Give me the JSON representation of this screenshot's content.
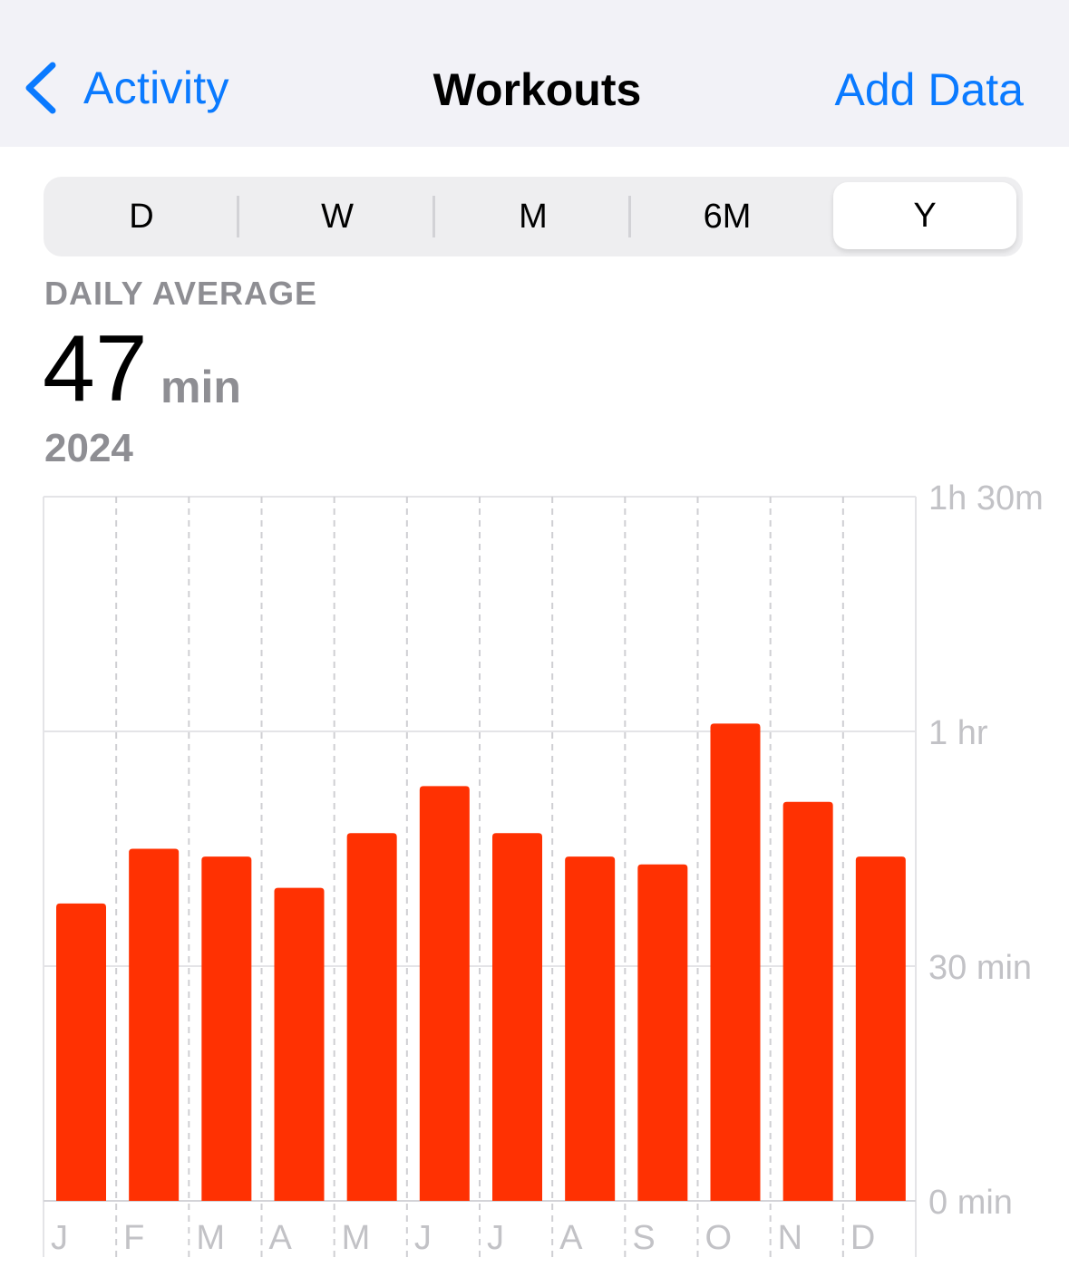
{
  "navbar": {
    "back_label": "Activity",
    "title": "Workouts",
    "action_label": "Add Data"
  },
  "segments": [
    "D",
    "W",
    "M",
    "6M",
    "Y"
  ],
  "selected_segment": "Y",
  "summary": {
    "label": "DAILY AVERAGE",
    "value": "47",
    "unit": "min",
    "period": "2024"
  },
  "colors": {
    "accent": "#0a7aff",
    "bar": "#ff3102",
    "secondary_text": "#8e8e93"
  },
  "chart_data": {
    "type": "bar",
    "categories": [
      "J",
      "F",
      "M",
      "A",
      "M",
      "J",
      "J",
      "A",
      "S",
      "O",
      "N",
      "D"
    ],
    "values": [
      38,
      45,
      44,
      40,
      47,
      53,
      47,
      44,
      43,
      61,
      51,
      44
    ],
    "unit": "min",
    "ylim": [
      0,
      90
    ],
    "yticks": [
      {
        "value": 90,
        "label": "1h 30m"
      },
      {
        "value": 60,
        "label": "1 hr"
      },
      {
        "value": 30,
        "label": "30 min"
      },
      {
        "value": 0,
        "label": "0 min"
      }
    ],
    "grid": true,
    "y_axis_side": "right"
  }
}
